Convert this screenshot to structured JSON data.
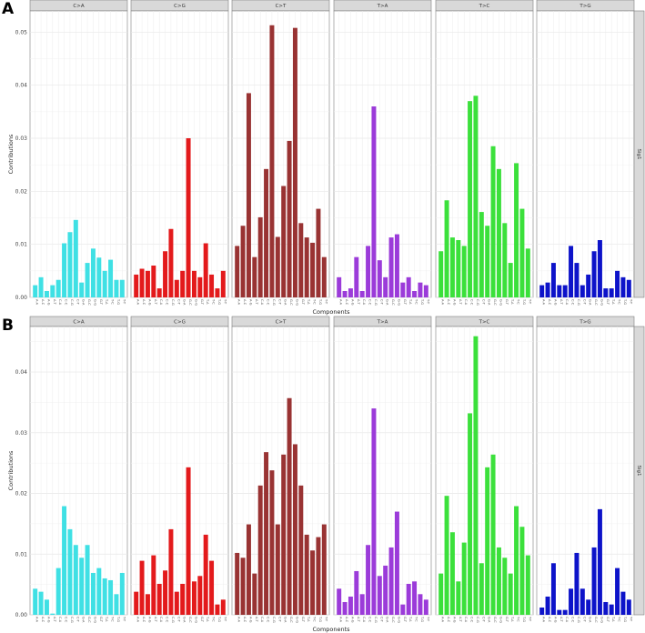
{
  "chart_data": [
    {
      "type": "bar",
      "panel_label": "A",
      "signature": "Sig1",
      "ylabel": "Contributions",
      "xlabel": "Components",
      "ylim": [
        0,
        0.054
      ],
      "yticks": [
        0.0,
        0.01,
        0.02,
        0.03,
        0.04,
        0.05
      ],
      "ytick_labels": [
        "0.00",
        "0.01",
        "0.02",
        "0.03",
        "0.04",
        "0.05"
      ],
      "grid": true,
      "categories": [
        "A-A",
        "A-C",
        "A-G",
        "A-T",
        "C-A",
        "C-C",
        "C-G",
        "C-T",
        "G-A",
        "G-C",
        "G-G",
        "G-T",
        "T-A",
        "T-C",
        "T-G",
        "T-T"
      ],
      "facets": [
        {
          "name": "C>A",
          "color": "#3FE0E4",
          "values": [
            0.0023,
            0.0038,
            0.0012,
            0.0023,
            0.0033,
            0.0102,
            0.0123,
            0.0146,
            0.0028,
            0.0065,
            0.0092,
            0.0075,
            0.005,
            0.0071,
            0.0033,
            0.0033
          ]
        },
        {
          "name": "C>G",
          "color": "#E31A1C",
          "values": [
            0.0043,
            0.0054,
            0.005,
            0.006,
            0.0017,
            0.0087,
            0.0129,
            0.0033,
            0.005,
            0.03,
            0.005,
            0.0038,
            0.0102,
            0.0043,
            0.0017,
            0.005
          ]
        },
        {
          "name": "C>T",
          "color": "#993333",
          "values": [
            0.0097,
            0.0135,
            0.0385,
            0.0076,
            0.0151,
            0.0242,
            0.0513,
            0.0114,
            0.021,
            0.0295,
            0.0508,
            0.014,
            0.0113,
            0.0103,
            0.0167,
            0.0076
          ]
        },
        {
          "name": "T>A",
          "color": "#9B3BD9",
          "values": [
            0.0038,
            0.0012,
            0.0017,
            0.0076,
            0.0012,
            0.0097,
            0.036,
            0.007,
            0.0038,
            0.0113,
            0.0119,
            0.0028,
            0.0038,
            0.0012,
            0.0028,
            0.0023
          ]
        },
        {
          "name": "T>C",
          "color": "#3BE03B",
          "values": [
            0.0087,
            0.0183,
            0.0113,
            0.0108,
            0.0097,
            0.037,
            0.038,
            0.0161,
            0.0135,
            0.0285,
            0.0242,
            0.014,
            0.0065,
            0.0253,
            0.0167,
            0.0092
          ]
        },
        {
          "name": "T>G",
          "color": "#0D13C9",
          "values": [
            0.0023,
            0.0028,
            0.0065,
            0.0023,
            0.0023,
            0.0097,
            0.0065,
            0.0023,
            0.0043,
            0.0087,
            0.0108,
            0.0017,
            0.0017,
            0.005,
            0.0038,
            0.0033
          ]
        }
      ]
    },
    {
      "type": "bar",
      "panel_label": "B",
      "signature": "Sig1",
      "ylabel": "Contributions",
      "xlabel": "Components",
      "ylim": [
        0,
        0.0475
      ],
      "yticks": [
        0.0,
        0.01,
        0.02,
        0.03,
        0.04
      ],
      "ytick_labels": [
        "0.00",
        "0.01",
        "0.02",
        "0.03",
        "0.04"
      ],
      "grid": true,
      "categories": [
        "A-A",
        "A-C",
        "A-G",
        "A-T",
        "C-A",
        "C-C",
        "C-G",
        "C-T",
        "G-A",
        "G-C",
        "G-G",
        "G-T",
        "T-A",
        "T-C",
        "T-G",
        "T-T"
      ],
      "facets": [
        {
          "name": "C>A",
          "color": "#3FE0E4",
          "values": [
            0.0043,
            0.0038,
            0.0025,
            0.0002,
            0.0077,
            0.0179,
            0.0141,
            0.0115,
            0.0094,
            0.0115,
            0.0069,
            0.0077,
            0.006,
            0.0057,
            0.0034,
            0.0069
          ]
        },
        {
          "name": "C>G",
          "color": "#E31A1C",
          "values": [
            0.0038,
            0.0089,
            0.0034,
            0.0098,
            0.0051,
            0.0073,
            0.0141,
            0.0038,
            0.0051,
            0.0243,
            0.0055,
            0.0064,
            0.0132,
            0.0089,
            0.0017,
            0.0025
          ]
        },
        {
          "name": "C>T",
          "color": "#993333",
          "values": [
            0.0102,
            0.0094,
            0.0149,
            0.0068,
            0.0213,
            0.0268,
            0.0238,
            0.0149,
            0.0264,
            0.0357,
            0.0281,
            0.0213,
            0.0132,
            0.0106,
            0.0128,
            0.0149
          ]
        },
        {
          "name": "T>A",
          "color": "#9B3BD9",
          "values": [
            0.0043,
            0.0021,
            0.003,
            0.0072,
            0.0034,
            0.0115,
            0.034,
            0.0064,
            0.0081,
            0.0111,
            0.017,
            0.0017,
            0.0051,
            0.0055,
            0.0034,
            0.0025
          ]
        },
        {
          "name": "T>C",
          "color": "#3BE03B",
          "values": [
            0.0068,
            0.0196,
            0.0136,
            0.0055,
            0.0119,
            0.0332,
            0.0459,
            0.0085,
            0.0243,
            0.0264,
            0.0111,
            0.0094,
            0.0068,
            0.0179,
            0.0145,
            0.0098
          ]
        },
        {
          "name": "T>G",
          "color": "#0D13C9",
          "values": [
            0.0012,
            0.003,
            0.0085,
            0.0008,
            0.0008,
            0.0043,
            0.0102,
            0.0043,
            0.0025,
            0.0111,
            0.0174,
            0.0021,
            0.0017,
            0.0077,
            0.0038,
            0.0025
          ]
        }
      ]
    }
  ]
}
